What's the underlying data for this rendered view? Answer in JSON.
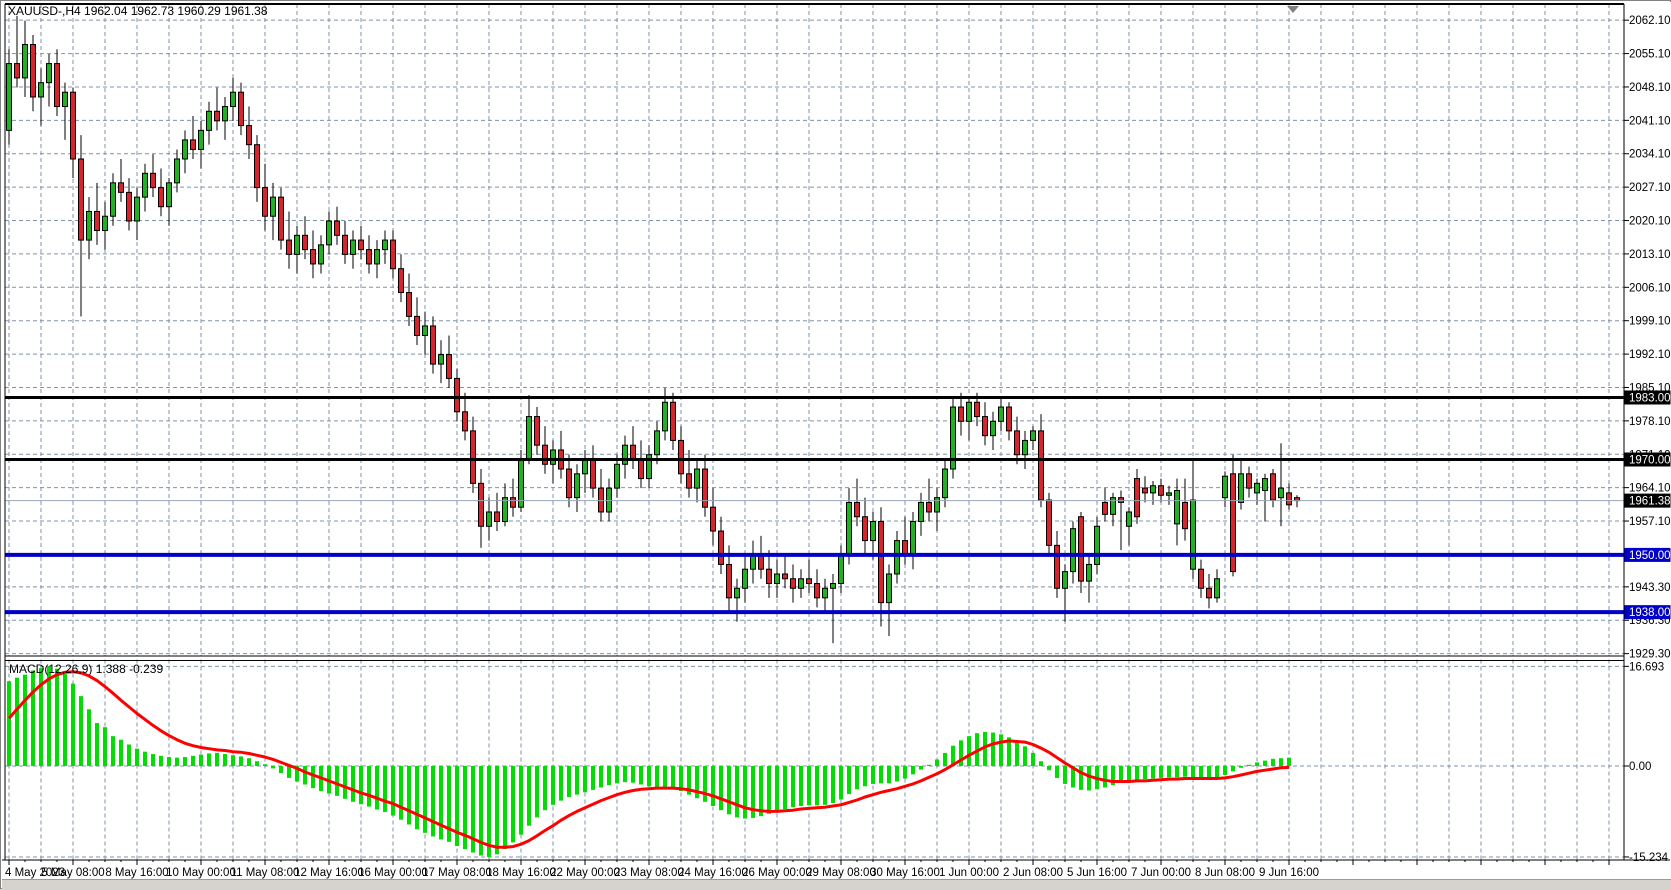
{
  "window": {
    "title_line": "XAUUSD-,H4 1962.04 1962.73 1960.29 1961.38"
  },
  "chart_data": {
    "type": "candlestick",
    "symbol": "XAUUSD-",
    "timeframe": "H4",
    "quote": {
      "open": "1962.04",
      "high": "1962.73",
      "low": "1960.29",
      "close": "1961.38"
    },
    "price_axis_ticks": [
      "2062.10",
      "2055.10",
      "2048.10",
      "2041.10",
      "2034.10",
      "2027.10",
      "2020.10",
      "2013.10",
      "2006.10",
      "1999.10",
      "1992.10",
      "1985.10",
      "1978.10",
      "1971.10",
      "1964.10",
      "1957.10",
      "1950.10",
      "1943.30",
      "1936.30",
      "1929.30"
    ],
    "levels": [
      {
        "price": 1983.0,
        "label": "1983.00",
        "kind": "resistance",
        "color": "#000000",
        "width": 3
      },
      {
        "price": 1970.0,
        "label": "1970.00",
        "kind": "resistance",
        "color": "#000000",
        "width": 3
      },
      {
        "price": 1950.0,
        "label": "1950.00",
        "kind": "support",
        "color": "#0000c8",
        "width": 4
      },
      {
        "price": 1938.0,
        "label": "1938.00",
        "kind": "support",
        "color": "#0000c8",
        "width": 4
      }
    ],
    "current_price": {
      "price": 1961.38,
      "label": "1961.38",
      "line_color": "#9aa6b4",
      "box_color": "#000000"
    },
    "time_axis_labels": [
      "4 May 2023",
      "5 May 08:00",
      "8 May 16:00",
      "10 May 00:00",
      "11 May 08:00",
      "12 May 16:00",
      "16 May 00:00",
      "17 May 08:00",
      "18 May 16:00",
      "22 May 00:00",
      "23 May 08:00",
      "24 May 16:00",
      "26 May 00:00",
      "29 May 08:00",
      "30 May 16:00",
      "1 Jun 00:00",
      "2 Jun 08:00",
      "5 Jun 16:00",
      "7 Jun 00:00",
      "8 Jun 08:00",
      "9 Jun 16:00"
    ],
    "ohlc": [
      [
        2039,
        2056,
        2036,
        2053
      ],
      [
        2053,
        2063,
        2048,
        2050
      ],
      [
        2050,
        2062,
        2046,
        2057
      ],
      [
        2057,
        2059,
        2043,
        2046
      ],
      [
        2046,
        2052,
        2040,
        2049
      ],
      [
        2049,
        2055,
        2044,
        2053
      ],
      [
        2053,
        2056,
        2042,
        2044
      ],
      [
        2044,
        2049,
        2037,
        2047
      ],
      [
        2047,
        2048,
        2029,
        2033
      ],
      [
        2033,
        2038,
        2000,
        2016
      ],
      [
        2016,
        2025,
        2012,
        2022
      ],
      [
        2022,
        2028,
        2015,
        2018
      ],
      [
        2018,
        2024,
        2014,
        2021
      ],
      [
        2021,
        2030,
        2019,
        2028
      ],
      [
        2028,
        2033,
        2024,
        2026
      ],
      [
        2026,
        2029,
        2018,
        2020
      ],
      [
        2020,
        2027,
        2016,
        2025
      ],
      [
        2025,
        2032,
        2022,
        2030
      ],
      [
        2030,
        2034,
        2025,
        2027
      ],
      [
        2027,
        2031,
        2021,
        2023
      ],
      [
        2023,
        2029,
        2019,
        2028
      ],
      [
        2028,
        2035,
        2026,
        2033
      ],
      [
        2033,
        2039,
        2030,
        2037
      ],
      [
        2037,
        2042,
        2033,
        2035
      ],
      [
        2035,
        2041,
        2031,
        2039
      ],
      [
        2039,
        2045,
        2036,
        2043
      ],
      [
        2043,
        2048,
        2039,
        2041
      ],
      [
        2041,
        2046,
        2037,
        2044
      ],
      [
        2044,
        2050,
        2041,
        2047
      ],
      [
        2047,
        2049,
        2038,
        2040
      ],
      [
        2040,
        2044,
        2033,
        2036
      ],
      [
        2036,
        2038,
        2024,
        2027
      ],
      [
        2027,
        2032,
        2018,
        2021
      ],
      [
        2021,
        2028,
        2016,
        2025
      ],
      [
        2025,
        2027,
        2014,
        2016
      ],
      [
        2016,
        2022,
        2010,
        2013
      ],
      [
        2013,
        2019,
        2009,
        2017
      ],
      [
        2017,
        2021,
        2012,
        2014
      ],
      [
        2014,
        2018,
        2008,
        2011
      ],
      [
        2011,
        2017,
        2009,
        2015
      ],
      [
        2015,
        2022,
        2013,
        2020
      ],
      [
        2020,
        2023,
        2015,
        2017
      ],
      [
        2017,
        2020,
        2011,
        2013
      ],
      [
        2013,
        2018,
        2010,
        2016
      ],
      [
        2016,
        2019,
        2012,
        2014
      ],
      [
        2014,
        2017,
        2009,
        2011
      ],
      [
        2011,
        2016,
        2008,
        2014
      ],
      [
        2014,
        2018,
        2011,
        2016
      ],
      [
        2016,
        2018,
        2008,
        2010
      ],
      [
        2010,
        2013,
        2003,
        2005
      ],
      [
        2005,
        2009,
        1998,
        2000
      ],
      [
        2000,
        2004,
        1994,
        1996
      ],
      [
        1996,
        2001,
        1992,
        1998
      ],
      [
        1998,
        2000,
        1988,
        1990
      ],
      [
        1990,
        1995,
        1986,
        1992
      ],
      [
        1992,
        1996,
        1985,
        1987
      ],
      [
        1987,
        1989,
        1978,
        1980
      ],
      [
        1980,
        1984,
        1974,
        1976
      ],
      [
        1976,
        1979,
        1963,
        1965
      ],
      [
        1965,
        1968,
        1951.5,
        1956
      ],
      [
        1956,
        1962,
        1953,
        1959
      ],
      [
        1959,
        1963,
        1955,
        1957
      ],
      [
        1957,
        1965,
        1956,
        1962
      ],
      [
        1962,
        1966,
        1958,
        1960
      ],
      [
        1960,
        1972,
        1959,
        1970
      ],
      [
        1970,
        1983.5,
        1969,
        1979
      ],
      [
        1979,
        1981,
        1971,
        1973
      ],
      [
        1973,
        1977,
        1967,
        1969
      ],
      [
        1969,
        1974,
        1965,
        1972
      ],
      [
        1972,
        1976,
        1966,
        1968
      ],
      [
        1968,
        1971,
        1960,
        1962
      ],
      [
        1962,
        1969,
        1959,
        1967
      ],
      [
        1967,
        1972,
        1963,
        1970
      ],
      [
        1970,
        1973,
        1962,
        1964
      ],
      [
        1964,
        1968,
        1957,
        1959
      ],
      [
        1959,
        1966,
        1957,
        1964
      ],
      [
        1964,
        1971,
        1962,
        1969
      ],
      [
        1969,
        1975,
        1966,
        1973
      ],
      [
        1973,
        1977,
        1968,
        1970
      ],
      [
        1970,
        1974,
        1964,
        1966
      ],
      [
        1966,
        1973,
        1964,
        1971
      ],
      [
        1971,
        1978,
        1969,
        1976
      ],
      [
        1976,
        1985,
        1974,
        1982
      ],
      [
        1982,
        1984,
        1972,
        1974
      ],
      [
        1974,
        1977,
        1965,
        1967
      ],
      [
        1967,
        1972,
        1962,
        1964
      ],
      [
        1964,
        1970,
        1961,
        1968
      ],
      [
        1968,
        1971,
        1958,
        1960
      ],
      [
        1960,
        1964,
        1952,
        1955
      ],
      [
        1955,
        1958,
        1946,
        1948
      ],
      [
        1948,
        1952,
        1938,
        1941
      ],
      [
        1941,
        1945,
        1936,
        1943
      ],
      [
        1943,
        1950,
        1940,
        1947
      ],
      [
        1947,
        1953,
        1944,
        1950
      ],
      [
        1950,
        1954,
        1945,
        1947
      ],
      [
        1947,
        1951,
        1941,
        1944
      ],
      [
        1944,
        1949,
        1941,
        1946
      ],
      [
        1946,
        1950,
        1943,
        1945
      ],
      [
        1945,
        1948,
        1940,
        1943
      ],
      [
        1943,
        1947,
        1941,
        1945
      ],
      [
        1945,
        1949,
        1942,
        1944
      ],
      [
        1944,
        1947,
        1939,
        1941
      ],
      [
        1941,
        1945,
        1938,
        1943
      ],
      [
        1943,
        1946,
        1931.5,
        1944
      ],
      [
        1944,
        1952,
        1942,
        1950
      ],
      [
        1950,
        1964,
        1948,
        1961
      ],
      [
        1961,
        1966,
        1956,
        1958
      ],
      [
        1958,
        1962,
        1950,
        1953
      ],
      [
        1953,
        1959,
        1949,
        1957
      ],
      [
        1957,
        1960,
        1935,
        1940
      ],
      [
        1940,
        1948,
        1933,
        1946
      ],
      [
        1946,
        1955,
        1944,
        1953
      ],
      [
        1953,
        1958,
        1948,
        1950
      ],
      [
        1950,
        1959,
        1947,
        1957
      ],
      [
        1957,
        1963,
        1954,
        1961
      ],
      [
        1961,
        1966,
        1957,
        1959
      ],
      [
        1959,
        1964,
        1955,
        1962
      ],
      [
        1962,
        1970,
        1960,
        1968
      ],
      [
        1968,
        1983,
        1966,
        1981
      ],
      [
        1981,
        1984,
        1975,
        1978
      ],
      [
        1978,
        1983,
        1974,
        1982
      ],
      [
        1982,
        1984,
        1977,
        1979
      ],
      [
        1979,
        1982,
        1973,
        1975
      ],
      [
        1975,
        1980,
        1972,
        1978
      ],
      [
        1978,
        1983,
        1976,
        1981
      ],
      [
        1981,
        1982,
        1974,
        1976
      ],
      [
        1976,
        1979,
        1969,
        1971
      ],
      [
        1971,
        1976,
        1968,
        1974
      ],
      [
        1974,
        1977,
        1972,
        1976
      ],
      [
        1976,
        1979.5,
        1960,
        1961.5
      ],
      [
        1961.5,
        1963,
        1950,
        1952
      ],
      [
        1952,
        1955,
        1941,
        1943
      ],
      [
        1943,
        1948,
        1936,
        1946.5
      ],
      [
        1946.5,
        1957,
        1944,
        1955.5
      ],
      [
        1958,
        1959,
        1942,
        1944.5
      ],
      [
        1944.5,
        1950,
        1940,
        1948
      ],
      [
        1948,
        1958,
        1946,
        1956
      ],
      [
        1961,
        1964,
        1957,
        1958.5
      ],
      [
        1958.5,
        1963,
        1956,
        1962
      ],
      [
        1962,
        1963.5,
        1951,
        1961
      ],
      [
        1956,
        1960,
        1952,
        1959
      ],
      [
        1966,
        1968,
        1956.5,
        1958
      ],
      [
        1964,
        1966.5,
        1961,
        1963
      ],
      [
        1963,
        1965.5,
        1960.5,
        1964.5
      ],
      [
        1964.5,
        1966,
        1961,
        1962.5
      ],
      [
        1962.5,
        1964.5,
        1960.5,
        1963
      ],
      [
        1956.5,
        1966,
        1952,
        1963.5
      ],
      [
        1961,
        1966,
        1953,
        1955.5
      ],
      [
        1947,
        1970,
        1945,
        1961.5
      ],
      [
        1947,
        1949,
        1941,
        1943
      ],
      [
        1943,
        1946,
        1938.8,
        1941
      ],
      [
        1941,
        1947,
        1940,
        1945
      ],
      [
        1962,
        1967.5,
        1960,
        1966.5
      ],
      [
        1967,
        1971,
        1945.5,
        1946.5
      ],
      [
        1961,
        1970,
        1959.5,
        1967
      ],
      [
        1967,
        1968.5,
        1962,
        1964
      ],
      [
        1963,
        1966,
        1960.5,
        1965
      ],
      [
        1963.5,
        1967,
        1957,
        1966
      ],
      [
        1967,
        1968,
        1960,
        1961.5
      ],
      [
        1962,
        1973.4,
        1956,
        1964
      ],
      [
        1963,
        1965,
        1959.5,
        1960.5
      ],
      [
        1962,
        1962.5,
        1960,
        1961.38
      ]
    ],
    "macd": {
      "label": "MACD(12,26,9)",
      "main_value": "1.388",
      "signal_value": "-0.239",
      "scale_ticks": [
        "16.693",
        "0.00",
        "-15.234"
      ],
      "histogram_color": "#00dd00",
      "signal_color": "#ff0000",
      "main": [
        14.2,
        14.8,
        15.3,
        16.0,
        16.4,
        16.69,
        16.3,
        15.4,
        13.8,
        11.7,
        9.5,
        7.2,
        6.5,
        5.0,
        4.4,
        3.6,
        2.9,
        2.4,
        2.0,
        1.7,
        1.5,
        1.4,
        1.5,
        1.7,
        1.9,
        2.1,
        2.2,
        2.0,
        1.8,
        1.6,
        1.3,
        0.8,
        0.3,
        -0.4,
        -1.2,
        -2.0,
        -2.6,
        -3.1,
        -3.7,
        -4.2,
        -4.6,
        -5.0,
        -5.5,
        -6.0,
        -6.4,
        -6.8,
        -7.3,
        -7.7,
        -8.3,
        -9.0,
        -9.8,
        -10.6,
        -11.2,
        -11.8,
        -12.3,
        -12.7,
        -13.4,
        -13.9,
        -14.5,
        -15.0,
        -15.23,
        -14.8,
        -13.9,
        -12.8,
        -11.5,
        -10.0,
        -8.6,
        -7.4,
        -6.5,
        -5.8,
        -5.2,
        -4.8,
        -4.4,
        -4.0,
        -3.6,
        -3.2,
        -2.9,
        -2.7,
        -2.8,
        -3.1,
        -3.4,
        -3.6,
        -3.7,
        -3.8,
        -4.2,
        -4.8,
        -5.4,
        -6.0,
        -6.7,
        -7.4,
        -8.1,
        -8.6,
        -8.8,
        -8.7,
        -8.4,
        -8.0,
        -7.6,
        -7.2,
        -6.9,
        -6.7,
        -6.6,
        -6.6,
        -6.5,
        -6.2,
        -5.6,
        -4.7,
        -3.9,
        -3.4,
        -3.0,
        -2.9,
        -2.9,
        -2.6,
        -2.1,
        -1.4,
        -0.6,
        0.2,
        1.1,
        2.2,
        3.4,
        4.3,
        5.0,
        5.5,
        5.7,
        5.6,
        5.3,
        4.8,
        4.1,
        3.3,
        2.2,
        0.8,
        -0.7,
        -2.0,
        -3.0,
        -3.6,
        -4.0,
        -4.1,
        -3.9,
        -3.6,
        -3.2,
        -2.8,
        -2.5,
        -2.3,
        -2.2,
        -2.1,
        -2.0,
        -1.9,
        -1.9,
        -1.8,
        -2.0,
        -2.2,
        -2.3,
        -2.0,
        -1.5,
        -0.9,
        -0.3,
        0.2,
        0.6,
        0.9,
        1.2,
        1.3,
        1.388
      ],
      "signal": [
        8.0,
        9.5,
        11.0,
        12.4,
        13.6,
        14.6,
        15.3,
        15.7,
        15.8,
        15.6,
        15.1,
        14.3,
        13.3,
        12.2,
        11.0,
        9.9,
        8.8,
        7.8,
        6.8,
        5.9,
        5.1,
        4.4,
        3.8,
        3.4,
        3.1,
        2.9,
        2.7,
        2.6,
        2.4,
        2.3,
        2.1,
        1.8,
        1.5,
        1.1,
        0.6,
        0.1,
        -0.4,
        -1.0,
        -1.5,
        -2.0,
        -2.5,
        -3.0,
        -3.5,
        -4.0,
        -4.5,
        -4.9,
        -5.4,
        -5.9,
        -6.3,
        -6.9,
        -7.5,
        -8.1,
        -8.7,
        -9.3,
        -9.9,
        -10.5,
        -11.1,
        -11.6,
        -12.2,
        -12.8,
        -13.3,
        -13.6,
        -13.6,
        -13.5,
        -13.1,
        -12.5,
        -11.7,
        -10.8,
        -10.0,
        -9.1,
        -8.3,
        -7.6,
        -7.0,
        -6.4,
        -5.8,
        -5.3,
        -4.8,
        -4.4,
        -4.1,
        -3.9,
        -3.8,
        -3.7,
        -3.7,
        -3.7,
        -3.8,
        -4.0,
        -4.3,
        -4.6,
        -5.0,
        -5.5,
        -6.0,
        -6.5,
        -7.0,
        -7.3,
        -7.5,
        -7.6,
        -7.6,
        -7.5,
        -7.4,
        -7.2,
        -7.1,
        -7.0,
        -6.9,
        -6.7,
        -6.5,
        -6.1,
        -5.7,
        -5.2,
        -4.8,
        -4.4,
        -4.1,
        -3.8,
        -3.4,
        -3.0,
        -2.5,
        -1.9,
        -1.3,
        -0.6,
        0.2,
        1.0,
        1.8,
        2.5,
        3.2,
        3.7,
        4.0,
        4.2,
        4.1,
        4.0,
        3.6,
        3.0,
        2.3,
        1.4,
        0.5,
        -0.3,
        -1.1,
        -1.7,
        -2.1,
        -2.4,
        -2.6,
        -2.6,
        -2.6,
        -2.5,
        -2.5,
        -2.4,
        -2.3,
        -2.2,
        -2.2,
        -2.1,
        -2.1,
        -2.1,
        -2.1,
        -2.1,
        -2.0,
        -1.8,
        -1.5,
        -1.2,
        -0.9,
        -0.7,
        -0.5,
        -0.3,
        -0.239
      ]
    },
    "colors": {
      "bull_candle": "#1fb31f",
      "bear_candle": "#d8242c",
      "wick": "#000000",
      "grid": "#8194a8",
      "background": "#ffffff",
      "axis_text": "#000000"
    }
  }
}
